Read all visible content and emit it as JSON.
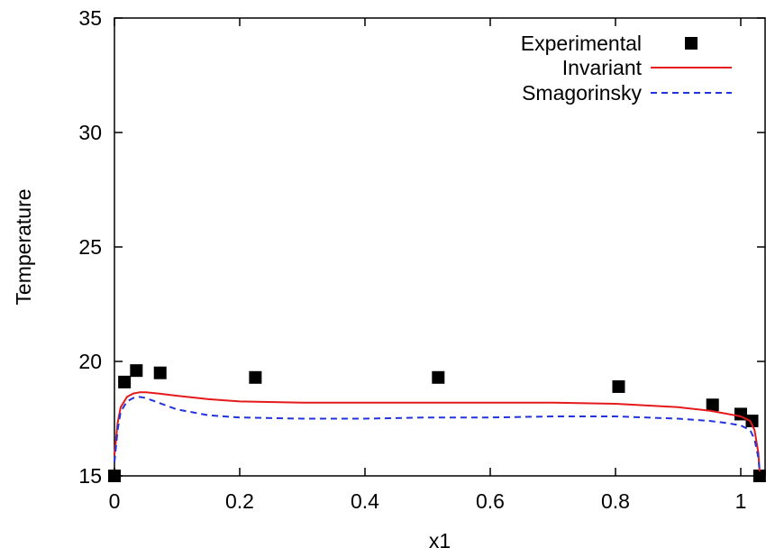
{
  "chart_data": {
    "type": "line",
    "title": "",
    "xlabel": "x1",
    "ylabel": "Temperature",
    "xlim": [
      0,
      1.03
    ],
    "ylim": [
      15,
      35
    ],
    "x_ticks": [
      0,
      0.2,
      0.4,
      0.6,
      0.8,
      1
    ],
    "x_tick_labels": [
      "0",
      "0.2",
      "0.4",
      "0.6",
      "0.8",
      "1"
    ],
    "y_ticks": [
      15,
      20,
      25,
      30,
      35
    ],
    "y_tick_labels": [
      "15",
      "20",
      "25",
      "30",
      "35"
    ],
    "grid": false,
    "legend_position": "top-right",
    "series": [
      {
        "name": "Experimental",
        "kind": "points",
        "marker": "square",
        "color": "#000000",
        "x": [
          0.0,
          0.016,
          0.035,
          0.073,
          0.225,
          0.517,
          0.805,
          0.955,
          1.0,
          1.018,
          1.03
        ],
        "y": [
          15.0,
          19.1,
          19.6,
          19.5,
          19.3,
          19.3,
          18.9,
          18.1,
          17.7,
          17.4,
          15.0
        ]
      },
      {
        "name": "Invariant",
        "kind": "line",
        "dash": "solid",
        "color": "#e41a1c",
        "x": [
          0.0,
          0.005,
          0.01,
          0.02,
          0.03,
          0.04,
          0.05,
          0.07,
          0.1,
          0.15,
          0.2,
          0.3,
          0.4,
          0.5,
          0.6,
          0.7,
          0.8,
          0.9,
          0.95,
          0.98,
          1.0,
          1.015,
          1.022,
          1.028,
          1.03
        ],
        "y": [
          15.9,
          17.3,
          18.0,
          18.45,
          18.6,
          18.65,
          18.65,
          18.6,
          18.5,
          18.35,
          18.25,
          18.2,
          18.2,
          18.2,
          18.2,
          18.2,
          18.15,
          18.0,
          17.85,
          17.7,
          17.6,
          17.4,
          17.0,
          16.0,
          15.2
        ]
      },
      {
        "name": "Smagorinsky",
        "kind": "line",
        "dash": "dashed",
        "color": "#2233dd",
        "x": [
          0.0,
          0.005,
          0.01,
          0.02,
          0.03,
          0.04,
          0.05,
          0.07,
          0.1,
          0.15,
          0.2,
          0.3,
          0.4,
          0.5,
          0.6,
          0.7,
          0.8,
          0.9,
          0.95,
          0.98,
          1.0,
          1.015,
          1.022,
          1.028,
          1.03
        ],
        "y": [
          15.6,
          17.0,
          17.8,
          18.25,
          18.4,
          18.45,
          18.4,
          18.2,
          17.9,
          17.65,
          17.55,
          17.5,
          17.5,
          17.55,
          17.55,
          17.6,
          17.6,
          17.5,
          17.4,
          17.3,
          17.2,
          17.0,
          16.6,
          15.8,
          15.2
        ]
      }
    ]
  }
}
